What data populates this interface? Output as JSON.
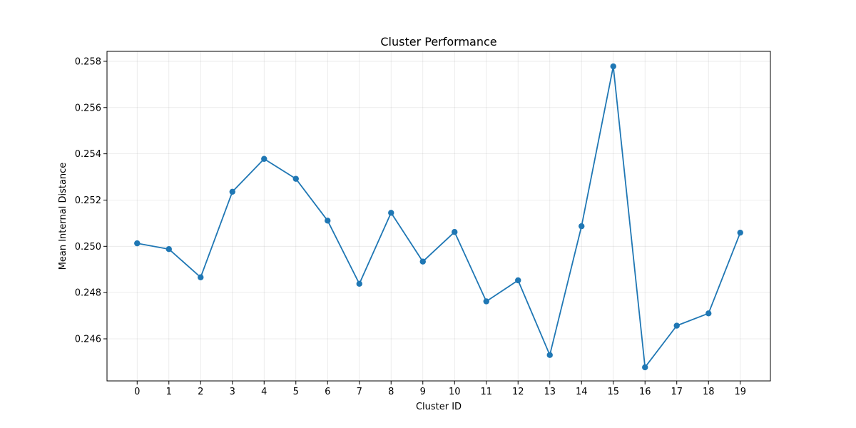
{
  "chart_data": {
    "type": "line",
    "title": "Cluster Performance",
    "xlabel": "Cluster ID",
    "ylabel": "Mean Internal Distance",
    "x": [
      0,
      1,
      2,
      3,
      4,
      5,
      6,
      7,
      8,
      9,
      10,
      11,
      12,
      13,
      14,
      15,
      16,
      17,
      18,
      19
    ],
    "series": [
      {
        "values": [
          0.25013,
          0.24988,
          0.24866,
          0.25236,
          0.25378,
          0.25292,
          0.25111,
          0.24838,
          0.25145,
          0.24934,
          0.25062,
          0.24762,
          0.24853,
          0.2453,
          0.25087,
          0.25778,
          0.24477,
          0.24657,
          0.2471,
          0.25059
        ],
        "color": "#1f77b4"
      }
    ],
    "xlim": [
      -0.95,
      19.95
    ],
    "ylim": [
      0.24418,
      0.25843
    ],
    "xticks": [
      "0",
      "1",
      "2",
      "3",
      "4",
      "5",
      "6",
      "7",
      "8",
      "9",
      "10",
      "11",
      "12",
      "13",
      "14",
      "15",
      "16",
      "17",
      "18",
      "19"
    ],
    "yticks": [
      0.246,
      0.248,
      0.25,
      0.252,
      0.254,
      0.256,
      0.258
    ],
    "ytick_labels": [
      "0.246",
      "0.248",
      "0.250",
      "0.252",
      "0.254",
      "0.256",
      "0.258"
    ],
    "grid": true,
    "legend": "none"
  }
}
